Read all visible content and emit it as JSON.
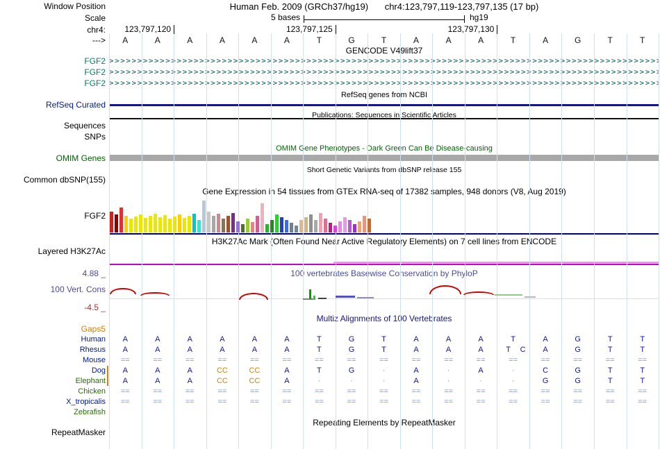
{
  "colors": {
    "grid": "#cfe0f2",
    "gencode_label": "#067f62",
    "gencode_arrows": "#0d564d",
    "refseq_blue": "#14148c",
    "omim_green": "#006400",
    "omim_bar_gray": "#a8a8a8",
    "gtex_baseline": "#000080",
    "h3k_magenta": "#cc00cc",
    "h3k_pink": "#ff80ff",
    "phylop_blue": "#4b4b9e",
    "phylop_red": "#cc0000",
    "multiz_letter": "#1414a0",
    "multiz_gap": "#7b90c4",
    "multiz_insert_orange": "#d88000"
  },
  "header": {
    "window_position_label": "Window Position",
    "assembly": "Human Feb. 2009 (GRCh37/hg19)",
    "position": "chr4:123,797,119-123,797,135 (17 bp)",
    "scale_label": "Scale",
    "scale_value": "5 bases",
    "genome": "hg19",
    "chrom_label": "chr4:",
    "ruler_ticks": [
      "123,797,120",
      "123,797,125",
      "123,797,130"
    ],
    "strand_label": "--->",
    "sequence": [
      "A",
      "A",
      "A",
      "A",
      "A",
      "A",
      "T",
      "G",
      "T",
      "A",
      "A",
      "A",
      "T",
      "A",
      "G",
      "T",
      "T"
    ]
  },
  "gencode": {
    "title": "GENCODE V49lift37",
    "gene_label": "FGF2",
    "transcript_rows": 3
  },
  "refseq": {
    "title": "RefSeq genes from NCBI",
    "label": "RefSeq Curated"
  },
  "publications": {
    "title": "Publications: Sequences in Scientific Articles",
    "label_sequences": "Sequences",
    "label_snps": "SNPs"
  },
  "omim": {
    "title": "OMIM Gene Phenotypes - Dark Green Can Be Disease-causing",
    "label": "OMIM Genes"
  },
  "dbsnp": {
    "title": "Short Genetic Variants from dbSNP release 155",
    "label": "Common dbSNP(155)"
  },
  "gtex": {
    "title": "Gene Expression in 54 tissues from GTEx RNA-seq of 17382 samples, 948 donors (V8, Aug 2019)",
    "label": "FGF2",
    "bars": [
      [
        30,
        "#cc2222"
      ],
      [
        26,
        "#8b0000"
      ],
      [
        36,
        "#e03030"
      ],
      [
        24,
        "#ffd000"
      ],
      [
        20,
        "#e8e800"
      ],
      [
        23,
        "#e8e800"
      ],
      [
        26,
        "#e8e800"
      ],
      [
        21,
        "#e8e800"
      ],
      [
        24,
        "#e8e800"
      ],
      [
        27,
        "#e8e800"
      ],
      [
        22,
        "#e8e800"
      ],
      [
        25,
        "#e8e800"
      ],
      [
        20,
        "#e8e800"
      ],
      [
        23,
        "#e8e800"
      ],
      [
        26,
        "#ffd000"
      ],
      [
        21,
        "#e8e800"
      ],
      [
        24,
        "#e8e800"
      ],
      [
        27,
        "#00c8c8"
      ],
      [
        18,
        "#40e0d0"
      ],
      [
        46,
        "#b8c8dc"
      ],
      [
        30,
        "#c8c8c8"
      ],
      [
        24,
        "#a8a8a8"
      ],
      [
        27,
        "#c09090"
      ],
      [
        20,
        "#8b7355"
      ],
      [
        24,
        "#a0522d"
      ],
      [
        28,
        "#7a2d8a"
      ],
      [
        16,
        "#9370db"
      ],
      [
        12,
        "#556b2f"
      ],
      [
        20,
        "#9acd32"
      ],
      [
        15,
        "#f08080"
      ],
      [
        24,
        "#d06090"
      ],
      [
        42,
        "#f0b0c0"
      ],
      [
        12,
        "#30b030"
      ],
      [
        18,
        "#228b22"
      ],
      [
        26,
        "#32cd32"
      ],
      [
        22,
        "#2040c0"
      ],
      [
        18,
        "#4169e1"
      ],
      [
        14,
        "#708090"
      ],
      [
        10,
        "#778899"
      ],
      [
        18,
        "#deb887"
      ],
      [
        22,
        "#d2b48c"
      ],
      [
        26,
        "#909090"
      ],
      [
        18,
        "#a9a9a9"
      ],
      [
        28,
        "#f0a0b0"
      ],
      [
        20,
        "#db7093"
      ],
      [
        14,
        "#c71585"
      ],
      [
        10,
        "#e040e0"
      ],
      [
        16,
        "#ee82ee"
      ],
      [
        22,
        "#dda0dd"
      ],
      [
        18,
        "#ba55d3"
      ],
      [
        12,
        "#9932cc"
      ],
      [
        16,
        "#f4a460"
      ],
      [
        24,
        "#e9967a"
      ],
      [
        20,
        "#d2691e"
      ]
    ]
  },
  "h3k27ac": {
    "title": "H3K27Ac Mark (Often Found Near Active Regulatory Elements) on 7 cell lines from ENCODE",
    "label": "Layered H3K27Ac"
  },
  "phylop": {
    "title": "100 vertebrates Basewise Conservation by PhyloP",
    "label": "100 Vert. Cons",
    "max_label": "4.88 _",
    "min_label": "-4.5 _",
    "features": [
      [
        "bar",
        157,
        792,
        1,
        430,
        "#dcdcdc"
      ],
      [
        "arc",
        158,
        38,
        9,
        415,
        "#cc0000"
      ],
      [
        "arc",
        202,
        42,
        5,
        421,
        "#cc0000"
      ],
      [
        "arc",
        344,
        42,
        10,
        422,
        "#cc0000"
      ],
      [
        "arc",
        618,
        46,
        13,
        411,
        "#cc0000"
      ],
      [
        "arc",
        667,
        44,
        5,
        420,
        "#cc0000"
      ],
      [
        "bar",
        436,
        18,
        2,
        430,
        "#808080"
      ],
      [
        "bar",
        445,
        3,
        14,
        417,
        "#00a000"
      ],
      [
        "bar",
        451,
        3,
        6,
        426,
        "#40c040"
      ],
      [
        "bar",
        458,
        12,
        2,
        429,
        "#404040"
      ],
      [
        "bar",
        483,
        28,
        3,
        426,
        "#5050c8"
      ],
      [
        "bar",
        514,
        24,
        2,
        428,
        "#9090c0"
      ],
      [
        "bar",
        712,
        40,
        2,
        424,
        "#90c890"
      ],
      [
        "bar",
        755,
        16,
        2,
        427,
        "#b8b8b8"
      ]
    ]
  },
  "multiz": {
    "title": "Multiz Alignments of 100 Vertebrates",
    "gaps_label": "Gaps5",
    "species": [
      {
        "name": "Human",
        "lc": "#00188f",
        "tokens": [
          [
            "A",
            0,
            "n"
          ],
          [
            "A",
            1,
            "n"
          ],
          [
            "A",
            2,
            "n"
          ],
          [
            "A",
            3,
            "n"
          ],
          [
            "A",
            4,
            "n"
          ],
          [
            "A",
            5,
            "n"
          ],
          [
            "T",
            6,
            "n"
          ],
          [
            "G",
            7,
            "n"
          ],
          [
            "T",
            8,
            "n"
          ],
          [
            "A",
            9,
            "n"
          ],
          [
            "A",
            10,
            "n"
          ],
          [
            "A",
            11,
            "n"
          ],
          [
            "T",
            12,
            "n"
          ],
          [
            "A",
            13,
            "n"
          ],
          [
            "G",
            14,
            "n"
          ],
          [
            "T",
            15,
            "n"
          ],
          [
            "T",
            16,
            "n"
          ]
        ]
      },
      {
        "name": "Rhesus",
        "lc": "#00188f",
        "tokens": [
          [
            "A",
            0,
            "n"
          ],
          [
            "A",
            1,
            "n"
          ],
          [
            "A",
            2,
            "n"
          ],
          [
            "A",
            3,
            "n"
          ],
          [
            "A",
            4,
            "n"
          ],
          [
            "A",
            5,
            "n"
          ],
          [
            "T",
            6,
            "n"
          ],
          [
            "G",
            7,
            "n"
          ],
          [
            "T",
            8,
            "n"
          ],
          [
            "A",
            9,
            "n"
          ],
          [
            "A",
            10,
            "n"
          ],
          [
            "A",
            11,
            "n"
          ],
          [
            "T",
            11.85,
            "n"
          ],
          [
            "C",
            12.3,
            "n"
          ],
          [
            "A",
            13,
            "n"
          ],
          [
            "G",
            14,
            "n"
          ],
          [
            "T",
            15,
            "n"
          ],
          [
            "T",
            16,
            "n"
          ]
        ]
      },
      {
        "name": "Mouse",
        "lc": "#00188f",
        "tokens": "=="
      },
      {
        "name": "Dog",
        "lc": "#00188f",
        "tokens": [
          [
            "A",
            0,
            "n"
          ],
          [
            "A",
            1,
            "n"
          ],
          [
            "A",
            2,
            "n"
          ],
          [
            "CC",
            3,
            "o"
          ],
          [
            "CC",
            4,
            "o"
          ],
          [
            "A",
            5,
            "n"
          ],
          [
            "T",
            6,
            "n"
          ],
          [
            "G",
            7,
            "n"
          ],
          [
            "·",
            8,
            "l"
          ],
          [
            "A",
            9,
            "n"
          ],
          [
            "·",
            10,
            "l"
          ],
          [
            "A",
            11,
            "n"
          ],
          [
            "·",
            12,
            "l"
          ],
          [
            "C",
            13,
            "n"
          ],
          [
            "G",
            14,
            "n"
          ],
          [
            "T",
            15,
            "n"
          ],
          [
            "T",
            16,
            "n"
          ]
        ]
      },
      {
        "name": "Elephant",
        "lc": "#247000",
        "tokens": [
          [
            "A",
            0,
            "n"
          ],
          [
            "A",
            1,
            "n"
          ],
          [
            "A",
            2,
            "n"
          ],
          [
            "CC",
            3,
            "o"
          ],
          [
            "CC",
            4,
            "o"
          ],
          [
            "A",
            5,
            "n"
          ],
          [
            "·",
            6,
            "l"
          ],
          [
            "·",
            7,
            "l"
          ],
          [
            "·",
            8,
            "l"
          ],
          [
            "A",
            9,
            "n"
          ],
          [
            "·",
            10,
            "l"
          ],
          [
            "·",
            11,
            "l"
          ],
          [
            "·",
            12,
            "l"
          ],
          [
            "G",
            13,
            "n"
          ],
          [
            "G",
            14,
            "n"
          ],
          [
            "T",
            15,
            "n"
          ],
          [
            "T",
            16,
            "n"
          ]
        ]
      },
      {
        "name": "Chicken",
        "lc": "#247000",
        "tokens": "=="
      },
      {
        "name": "X_tropicalis",
        "lc": "#00188f",
        "tokens": "=="
      },
      {
        "name": "Zebrafish",
        "lc": "#247000",
        "tokens": []
      }
    ]
  },
  "repeats": {
    "title": "Repeating Elements by RepeatMasker",
    "label": "RepeatMasker"
  }
}
